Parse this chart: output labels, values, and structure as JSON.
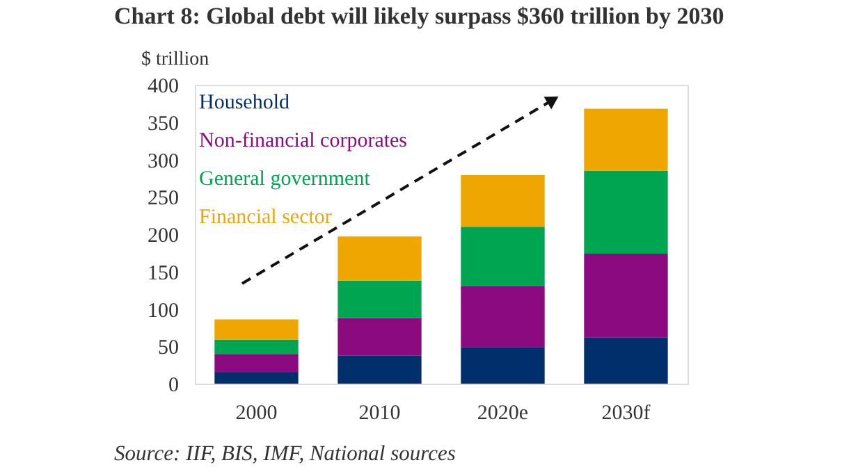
{
  "chart_data": {
    "type": "bar",
    "title": "Chart 8:  Global debt will likely surpass $360 trillion by 2030",
    "ylabel": "$ trillion",
    "categories": [
      "2000",
      "2010",
      "2020e",
      "2030f"
    ],
    "series": [
      {
        "name": "Household",
        "color": "#002f6c",
        "values": [
          15,
          38,
          49,
          62
        ]
      },
      {
        "name": "Non-financial corporates",
        "color": "#8c0a80",
        "values": [
          24,
          50,
          82,
          112
        ]
      },
      {
        "name": "General government",
        "color": "#00a551",
        "values": [
          20,
          50,
          79,
          111
        ]
      },
      {
        "name": "Financial sector",
        "color": "#efa600",
        "values": [
          27,
          59,
          69,
          83
        ]
      }
    ],
    "stacked": true,
    "ylim": [
      0,
      400
    ],
    "yticks": [
      0,
      50,
      100,
      150,
      200,
      250,
      300,
      350,
      400
    ],
    "legend": "top left",
    "annotations": [
      "Source: IIF, BIS, IMF, National sources"
    ]
  }
}
